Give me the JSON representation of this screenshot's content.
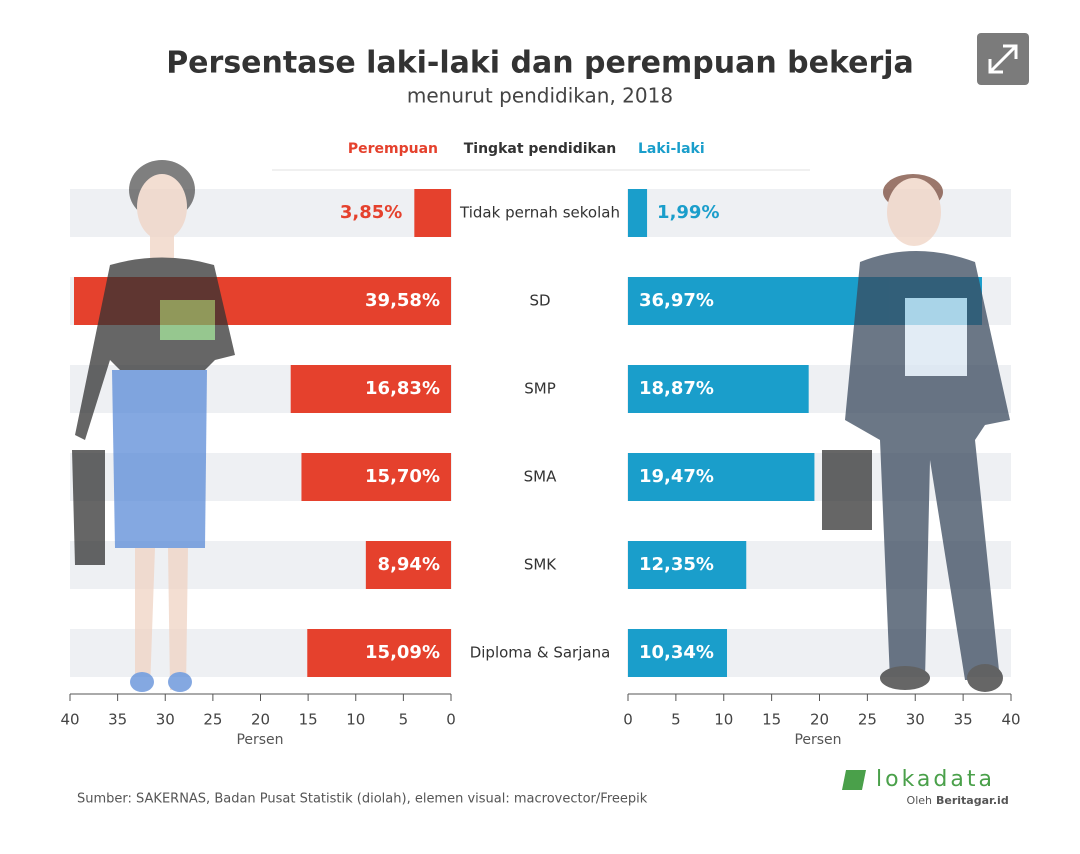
{
  "chart_data": {
    "type": "butterfly-bar",
    "title": "Persentase laki-laki dan perempuan bekerja",
    "subtitle": "menurut pendidikan, 2018",
    "category_header": "Tingkat pendidikan",
    "categories": [
      "Tidak pernah sekolah",
      "SD",
      "SMP",
      "SMA",
      "SMK",
      "Diploma & Sarjana"
    ],
    "series": [
      {
        "name": "Perempuan",
        "color": "#e5412d",
        "side": "left",
        "values": [
          3.85,
          39.58,
          16.83,
          15.7,
          8.94,
          15.09
        ],
        "value_labels": [
          "3,85%",
          "39,58%",
          "16,83%",
          "15,70%",
          "8,94%",
          "15,09%"
        ]
      },
      {
        "name": "Laki-laki",
        "color": "#1a9ecb",
        "side": "right",
        "values": [
          1.99,
          36.97,
          18.87,
          19.47,
          12.35,
          10.34
        ],
        "value_labels": [
          "1,99%",
          "36,97%",
          "18,87%",
          "19,47%",
          "12,35%",
          "10,34%"
        ]
      }
    ],
    "xlim": [
      0,
      40
    ],
    "xticks": [
      0,
      5,
      10,
      15,
      20,
      25,
      30,
      35,
      40
    ],
    "xlabel": "Persen",
    "source": "Sumber: SAKERNAS, Badan Pusat Statistik (diolah), elemen visual: macrovector/Freepik",
    "brand": "lokadata",
    "byline_prefix": "Oleh",
    "byline": "Beritagar.id"
  }
}
